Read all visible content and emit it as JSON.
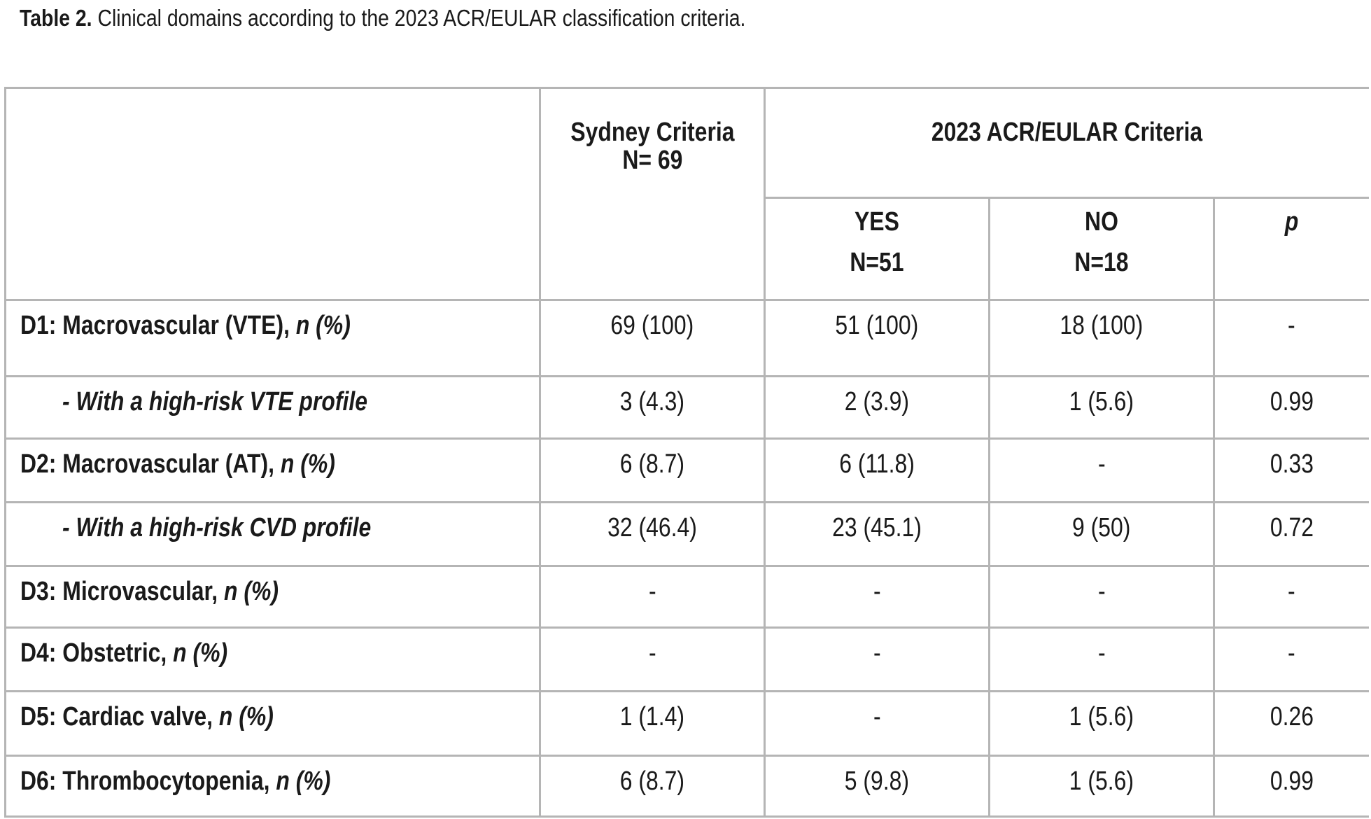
{
  "caption": {
    "label": "Table 2.",
    "text": " Clinical domains according to the 2023 ACR/EULAR classification criteria."
  },
  "header": {
    "sydney": {
      "title": "Sydney Criteria",
      "n": "N= 69"
    },
    "acr": {
      "title": "2023 ACR/EULAR Criteria",
      "yes": {
        "title": "YES",
        "n": "N=51"
      },
      "no": {
        "title": "NO",
        "n": "N=18"
      },
      "p": "p"
    }
  },
  "rows": [
    {
      "label": "D1: Macrovascular (VTE), ",
      "suffix": "n (%)",
      "sydney": "69 (100)",
      "yes": "51 (100)",
      "no": "18 (100)",
      "p": "-"
    },
    {
      "label": "- With a high-risk VTE profile",
      "suffix": "",
      "sydney": "3 (4.3)",
      "yes": "2 (3.9)",
      "no": "1 (5.6)",
      "p": "0.99"
    },
    {
      "label": "D2: Macrovascular (AT), ",
      "suffix": "n (%)",
      "sydney": "6 (8.7)",
      "yes": "6 (11.8)",
      "no": "-",
      "p": "0.33"
    },
    {
      "label": "- With a high-risk CVD profile",
      "suffix": "",
      "sydney": "32 (46.4)",
      "yes": "23 (45.1)",
      "no": "9 (50)",
      "p": "0.72"
    },
    {
      "label": "D3: Microvascular, ",
      "suffix": "n (%)",
      "sydney": "-",
      "yes": "-",
      "no": "-",
      "p": "-"
    },
    {
      "label": "D4: Obstetric, ",
      "suffix": "n (%)",
      "sydney": "-",
      "yes": "-",
      "no": "-",
      "p": "-"
    },
    {
      "label": "D5: Cardiac valve, ",
      "suffix": "n (%)",
      "sydney": "1 (1.4)",
      "yes": "-",
      "no": "1 (5.6)",
      "p": "0.26"
    },
    {
      "label": "D6: Thrombocytopenia, ",
      "suffix": "n (%)",
      "sydney": "6 (8.7)",
      "yes": "5 (9.8)",
      "no": "1 (5.6)",
      "p": "0.99"
    }
  ]
}
